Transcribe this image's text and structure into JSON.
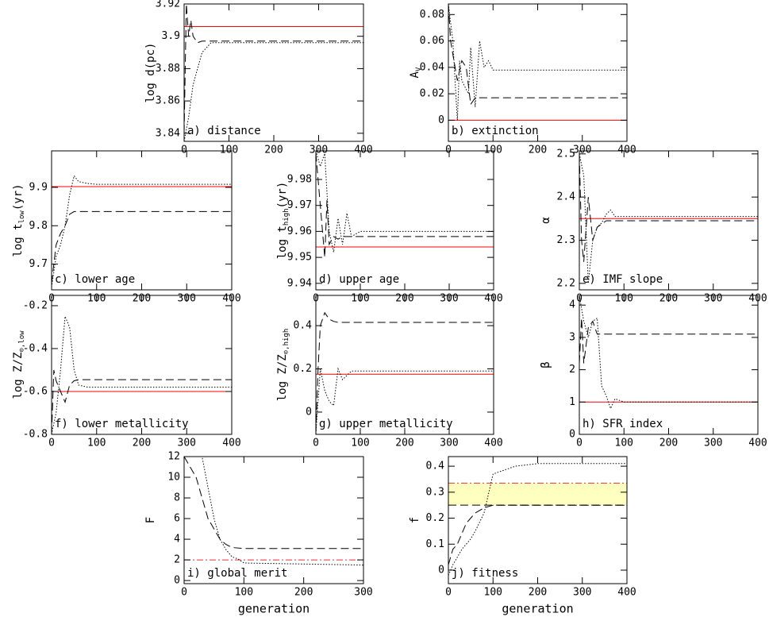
{
  "chart_data": [
    {
      "type": "line",
      "ylabel": [
        "log d(pc)"
      ],
      "annotation": "a) distance",
      "xlim": [
        0,
        400
      ],
      "xticks": [
        0,
        100,
        200,
        300,
        400
      ],
      "ylim": [
        3.835,
        3.92
      ],
      "yticks": [
        3.84,
        3.86,
        3.88,
        3.9,
        3.92
      ],
      "series": [
        {
          "color": "#ff0000",
          "style": "solid",
          "x": [
            0,
            400
          ],
          "values": [
            3.906,
            3.906
          ]
        },
        {
          "color": "#000000",
          "style": "dashed",
          "x": [
            0,
            5,
            10,
            15,
            20,
            30,
            40,
            50,
            400
          ],
          "values": [
            3.84,
            3.92,
            3.9,
            3.91,
            3.9,
            3.896,
            3.897,
            3.897,
            3.897
          ]
        },
        {
          "color": "#000000",
          "style": "dotted",
          "x": [
            0,
            10,
            20,
            30,
            40,
            50,
            60,
            100,
            400
          ],
          "values": [
            3.835,
            3.85,
            3.87,
            3.88,
            3.89,
            3.893,
            3.896,
            3.896,
            3.896
          ]
        }
      ]
    },
    {
      "type": "line",
      "ylabel": [
        "A",
        "V"
      ],
      "annotation": "b) extinction",
      "xlim": [
        0,
        400
      ],
      "xticks": [
        0,
        100,
        200,
        300,
        400
      ],
      "ylim": [
        -0.016,
        0.088
      ],
      "yticks": [
        0,
        0.02,
        0.04,
        0.06,
        0.08
      ],
      "series": [
        {
          "color": "#ff0000",
          "style": "solid",
          "x": [
            0,
            400
          ],
          "values": [
            0,
            0
          ]
        },
        {
          "color": "#000000",
          "style": "dashed",
          "x": [
            0,
            5,
            10,
            20,
            30,
            40,
            50,
            60,
            400
          ],
          "values": [
            0.088,
            0.06,
            0.05,
            0.03,
            0.045,
            0.04,
            0.012,
            0.017,
            0.017
          ]
        },
        {
          "color": "#000000",
          "style": "dotted",
          "x": [
            0,
            10,
            20,
            25,
            30,
            45,
            50,
            60,
            70,
            80,
            90,
            100,
            400
          ],
          "values": [
            0.088,
            0.06,
            0,
            0.045,
            0.03,
            0.02,
            0.055,
            0.01,
            0.06,
            0.04,
            0.045,
            0.038,
            0.038
          ]
        }
      ]
    },
    {
      "type": "line",
      "ylabel": [
        "log t",
        "low",
        "(yr)"
      ],
      "annotation": "c) lower age",
      "xlim": [
        0,
        400
      ],
      "xticks": [
        0,
        100,
        200,
        300,
        400
      ],
      "ylim": [
        9.633,
        9.995
      ],
      "yticks": [
        9.7,
        9.8,
        9.9
      ],
      "series": [
        {
          "color": "#ff0000",
          "style": "solid",
          "x": [
            0,
            400
          ],
          "values": [
            9.902,
            9.902
          ]
        },
        {
          "color": "#000000",
          "style": "dashed",
          "x": [
            0,
            5,
            10,
            20,
            30,
            40,
            50,
            400
          ],
          "values": [
            9.65,
            9.7,
            9.75,
            9.78,
            9.8,
            9.83,
            9.837,
            9.837
          ]
        },
        {
          "color": "#000000",
          "style": "dotted",
          "x": [
            0,
            10,
            20,
            30,
            40,
            50,
            60,
            80,
            100,
            400
          ],
          "values": [
            9.64,
            9.72,
            9.75,
            9.8,
            9.88,
            9.93,
            9.915,
            9.91,
            9.908,
            9.908
          ]
        }
      ]
    },
    {
      "type": "line",
      "ylabel": [
        "log t",
        "high",
        "(yr)"
      ],
      "annotation": "d) upper age",
      "xlim": [
        0,
        400
      ],
      "xticks": [
        0,
        100,
        200,
        300,
        400
      ],
      "ylim": [
        9.9375,
        9.991
      ],
      "yticks": [
        9.94,
        9.95,
        9.96,
        9.97,
        9.98
      ],
      "series": [
        {
          "color": "#ff0000",
          "style": "solid",
          "x": [
            0,
            400
          ],
          "values": [
            9.954,
            9.954
          ]
        },
        {
          "color": "#000000",
          "style": "dashed",
          "x": [
            0,
            10,
            20,
            25,
            30,
            40,
            50,
            60,
            400
          ],
          "values": [
            9.99,
            9.97,
            9.95,
            9.972,
            9.955,
            9.958,
            9.957,
            9.958,
            9.958
          ]
        },
        {
          "color": "#000000",
          "style": "dotted",
          "x": [
            0,
            10,
            20,
            30,
            40,
            50,
            60,
            70,
            80,
            100,
            400
          ],
          "values": [
            9.991,
            9.985,
            9.99,
            9.96,
            9.952,
            9.965,
            9.955,
            9.967,
            9.958,
            9.96,
            9.96
          ]
        }
      ]
    },
    {
      "type": "line",
      "ylabel": [
        "α"
      ],
      "annotation": "e) IMF slope",
      "xlim": [
        0,
        400
      ],
      "xticks": [
        0,
        100,
        200,
        300,
        400
      ],
      "ylim": [
        2.185,
        2.507
      ],
      "yticks": [
        2.2,
        2.3,
        2.4,
        2.5
      ],
      "series": [
        {
          "color": "#ff0000",
          "style": "solid",
          "x": [
            0,
            400
          ],
          "values": [
            2.35,
            2.35
          ]
        },
        {
          "color": "#000000",
          "style": "dashed",
          "x": [
            0,
            5,
            10,
            20,
            30,
            40,
            60,
            80,
            400
          ],
          "values": [
            2.5,
            2.3,
            2.25,
            2.4,
            2.3,
            2.33,
            2.345,
            2.345,
            2.345
          ]
        },
        {
          "color": "#000000",
          "style": "dotted",
          "x": [
            0,
            10,
            20,
            30,
            40,
            50,
            60,
            70,
            80,
            100,
            400
          ],
          "values": [
            2.5,
            2.45,
            2.2,
            2.3,
            2.33,
            2.34,
            2.36,
            2.37,
            2.355,
            2.355,
            2.355
          ]
        }
      ]
    },
    {
      "type": "line",
      "ylabel": [
        "log Z/Z",
        "⊙,low"
      ],
      "annotation": "f) lower metallicity",
      "xlim": [
        0,
        400
      ],
      "xticks": [
        0,
        100,
        200,
        300,
        400
      ],
      "ylim": [
        -0.8,
        -0.152
      ],
      "yticks": [
        -0.8,
        -0.6,
        -0.4,
        -0.2
      ],
      "series": [
        {
          "color": "#ff0000",
          "style": "solid",
          "x": [
            0,
            400
          ],
          "values": [
            -0.6,
            -0.6
          ]
        },
        {
          "color": "#000000",
          "style": "dashed",
          "x": [
            0,
            5,
            10,
            20,
            30,
            40,
            50,
            60,
            400
          ],
          "values": [
            -0.8,
            -0.5,
            -0.55,
            -0.6,
            -0.65,
            -0.57,
            -0.55,
            -0.545,
            -0.545
          ]
        },
        {
          "color": "#000000",
          "style": "dotted",
          "x": [
            0,
            10,
            20,
            30,
            40,
            50,
            60,
            80,
            100,
            400
          ],
          "values": [
            -0.8,
            -0.7,
            -0.5,
            -0.25,
            -0.3,
            -0.5,
            -0.57,
            -0.58,
            -0.58,
            -0.58
          ]
        }
      ]
    },
    {
      "type": "line",
      "ylabel": [
        "log Z/Z",
        "⊙,high"
      ],
      "annotation": "g) upper metallicity",
      "xlim": [
        0,
        400
      ],
      "xticks": [
        0,
        100,
        200,
        300,
        400
      ],
      "ylim": [
        -0.103,
        0.54
      ],
      "yticks": [
        0,
        0.2,
        0.4
      ],
      "series": [
        {
          "color": "#ff0000",
          "style": "solid",
          "x": [
            0,
            400
          ],
          "values": [
            0.175,
            0.175
          ]
        },
        {
          "color": "#000000",
          "style": "dashed",
          "x": [
            0,
            5,
            10,
            20,
            30,
            40,
            50,
            400
          ],
          "values": [
            -0.1,
            0.2,
            0.4,
            0.46,
            0.43,
            0.42,
            0.415,
            0.415
          ]
        },
        {
          "color": "#000000",
          "style": "dotted",
          "x": [
            0,
            10,
            20,
            30,
            40,
            50,
            60,
            80,
            100,
            400
          ],
          "values": [
            -0.1,
            0.2,
            0.1,
            0.05,
            0.03,
            0.2,
            0.15,
            0.19,
            0.19,
            0.19
          ]
        }
      ]
    },
    {
      "type": "line",
      "ylabel": [
        "β"
      ],
      "annotation": "h) SFR index",
      "xlim": [
        0,
        400
      ],
      "xticks": [
        0,
        100,
        200,
        300,
        400
      ],
      "ylim": [
        0,
        4.3
      ],
      "yticks": [
        0,
        1,
        2,
        3,
        4
      ],
      "series": [
        {
          "color": "#ff0000",
          "style": "solid",
          "x": [
            0,
            400
          ],
          "values": [
            1,
            1
          ]
        },
        {
          "color": "#000000",
          "style": "dashed",
          "x": [
            0,
            5,
            10,
            20,
            30,
            40,
            50,
            400
          ],
          "values": [
            2.2,
            3.6,
            2.2,
            3.3,
            3.5,
            3.1,
            3.1,
            3.1
          ]
        },
        {
          "color": "#000000",
          "style": "dotted",
          "x": [
            0,
            10,
            20,
            30,
            40,
            50,
            60,
            70,
            80,
            100,
            400
          ],
          "values": [
            4.3,
            3.5,
            3,
            3.5,
            3.6,
            1.5,
            1.2,
            0.8,
            1.1,
            1,
            1
          ]
        }
      ]
    },
    {
      "type": "line",
      "ylabel": [
        "F"
      ],
      "xlabel": "generation",
      "annotation": "i) global merit",
      "xlim": [
        0,
        300
      ],
      "xticks": [
        0,
        100,
        200,
        300
      ],
      "ylim": [
        -0.3,
        12
      ],
      "yticks": [
        0,
        2,
        4,
        6,
        8,
        10,
        12
      ],
      "series": [
        {
          "color": "#e0303a",
          "style": "dashdot",
          "x": [
            0,
            300
          ],
          "values": [
            2,
            2
          ]
        },
        {
          "color": "#000000",
          "style": "dashed",
          "x": [
            0,
            20,
            30,
            40,
            50,
            60,
            70,
            80,
            100,
            300
          ],
          "values": [
            12,
            10,
            8,
            6,
            5,
            4,
            3.5,
            3.2,
            3.1,
            3.1
          ]
        },
        {
          "color": "#000000",
          "style": "dotted",
          "x": [
            0,
            30,
            40,
            50,
            60,
            70,
            80,
            90,
            100,
            300
          ],
          "values": [
            12,
            12,
            9,
            6,
            4,
            3,
            2.3,
            2.1,
            1.7,
            1.5
          ]
        }
      ]
    },
    {
      "type": "line",
      "ylabel": [
        "f"
      ],
      "xlabel": "generation",
      "annotation": "j) fitness",
      "xlim": [
        0,
        400
      ],
      "xticks": [
        0,
        100,
        200,
        300,
        400
      ],
      "ylim": [
        -0.052,
        0.437
      ],
      "yticks": [
        0,
        0.1,
        0.2,
        0.3,
        0.4
      ],
      "band": [
        0.25,
        0.335
      ],
      "band_color": "#ffffc0",
      "series": [
        {
          "color": "#e0303a",
          "style": "dashdot",
          "x": [
            0,
            400
          ],
          "values": [
            0.335,
            0.335
          ]
        },
        {
          "color": "#000000",
          "style": "dashed",
          "x": [
            0,
            5,
            10,
            20,
            30,
            40,
            50,
            60,
            80,
            100,
            400
          ],
          "values": [
            0.02,
            0.05,
            0.08,
            0.1,
            0.14,
            0.18,
            0.2,
            0.22,
            0.24,
            0.25,
            0.25
          ]
        },
        {
          "color": "#000000",
          "style": "dotted",
          "x": [
            0,
            10,
            20,
            30,
            40,
            50,
            60,
            80,
            100,
            150,
            200,
            400
          ],
          "values": [
            -0.02,
            0.02,
            0.05,
            0.08,
            0.1,
            0.12,
            0.15,
            0.22,
            0.37,
            0.4,
            0.41,
            0.41
          ]
        }
      ]
    }
  ]
}
